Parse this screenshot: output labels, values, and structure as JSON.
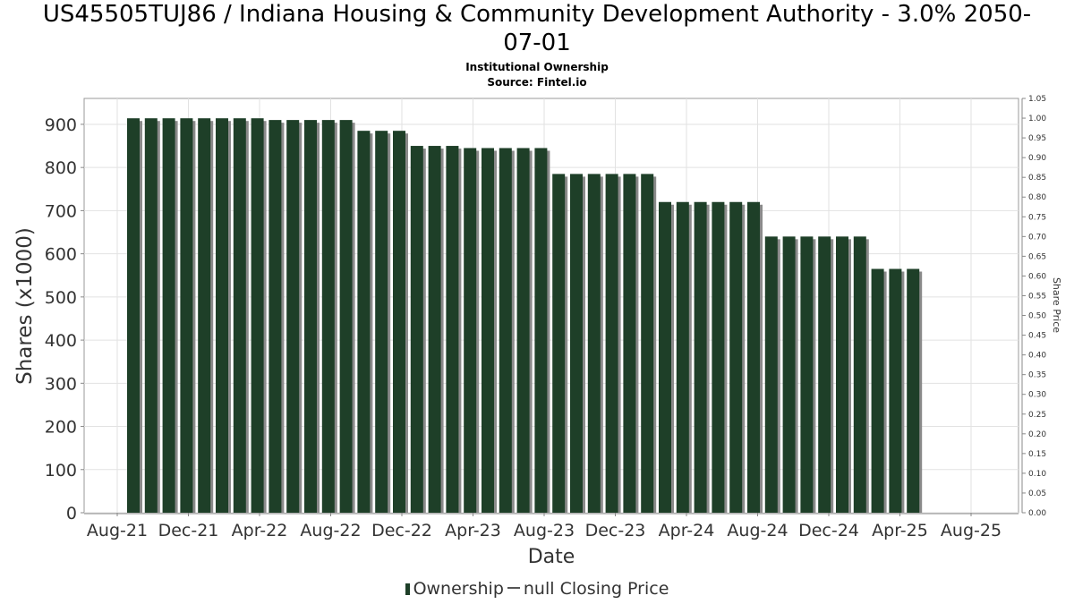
{
  "chart_data": {
    "type": "bar",
    "title_line1": "US45505TUJ86 / Indiana Housing & Community Development Authority - 3.0% 2050-",
    "title_line2": "07-01",
    "subtitle": "Institutional Ownership",
    "source": "Source: Fintel.io",
    "xlabel": "Date",
    "ylabel": "Shares (x1000)",
    "y2label": "Share Price",
    "ylim": [
      0,
      960
    ],
    "y_ticks": [
      0,
      100,
      200,
      300,
      400,
      500,
      600,
      700,
      800,
      900
    ],
    "y2lim": [
      0,
      1.05
    ],
    "y2_ticks": [
      "0.00",
      "0.05",
      "0.10",
      "0.15",
      "0.20",
      "0.25",
      "0.30",
      "0.35",
      "0.40",
      "0.45",
      "0.50",
      "0.55",
      "0.60",
      "0.65",
      "0.70",
      "0.75",
      "0.80",
      "0.85",
      "0.90",
      "0.95",
      "1.00",
      "1.05"
    ],
    "x_ticks": [
      "Aug-21",
      "Dec-21",
      "Apr-22",
      "Aug-22",
      "Dec-22",
      "Apr-23",
      "Aug-23",
      "Dec-23",
      "Apr-24",
      "Aug-24",
      "Dec-24",
      "Apr-25",
      "Aug-25"
    ],
    "grid": true,
    "legend": [
      {
        "name": "Ownership",
        "color": "#1e3f28",
        "kind": "bar"
      },
      {
        "name": "null Closing Price",
        "color": "#555555",
        "kind": "line"
      }
    ],
    "series": [
      {
        "name": "Ownership",
        "color": "#1e3f28",
        "values": [
          914,
          914,
          914,
          914,
          914,
          914,
          914,
          914,
          910,
          910,
          910,
          910,
          910,
          885,
          885,
          885,
          850,
          850,
          850,
          845,
          845,
          845,
          845,
          845,
          785,
          785,
          785,
          785,
          785,
          785,
          720,
          720,
          720,
          720,
          720,
          720,
          640,
          640,
          640,
          640,
          640,
          640,
          565,
          565,
          565
        ]
      }
    ]
  }
}
